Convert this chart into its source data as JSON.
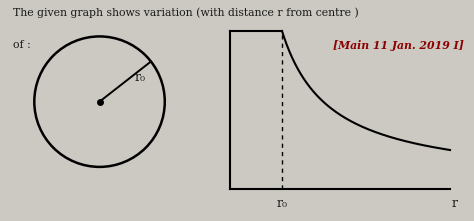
{
  "title_line1": "The given graph shows variation (with distance r from centre )",
  "title_line2": "of :",
  "ref_text": "[Main 11 Jan. 2019 I]",
  "background_color": "#ccc9c2",
  "text_color": "#1a1a1a",
  "ref_color": "#8b0000",
  "r0_label_circle": "r₀",
  "r0_label_graph": "r₀",
  "r_label": "r",
  "fig_width": 4.74,
  "fig_height": 2.21,
  "dpi": 100
}
